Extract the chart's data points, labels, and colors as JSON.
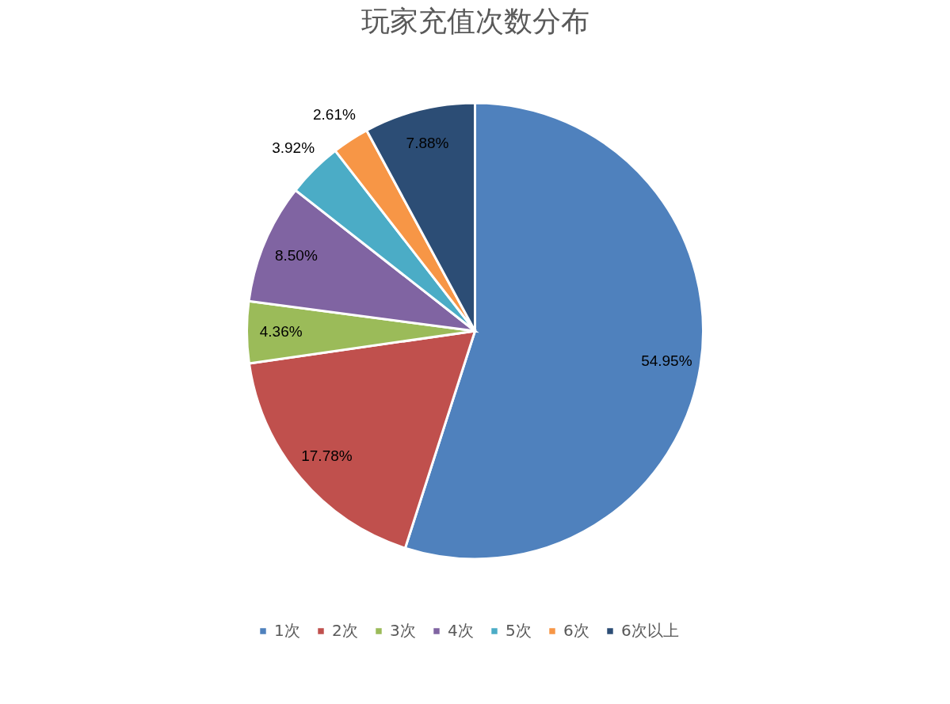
{
  "chart_data": {
    "type": "pie",
    "title": "玩家充值次数分布",
    "categories": [
      "1次",
      "2次",
      "3次",
      "4次",
      "5次",
      "6次",
      "6次以上"
    ],
    "values": [
      54.95,
      17.78,
      4.36,
      8.5,
      3.92,
      2.61,
      7.88
    ],
    "value_labels": [
      "54.95%",
      "17.78%",
      "4.36%",
      "8.50%",
      "3.92%",
      "2.61%",
      "7.88%"
    ],
    "colors": [
      "#4f81bd",
      "#c0504d",
      "#9bbb59",
      "#8064a2",
      "#4bacc6",
      "#f79646",
      "#2c4d75"
    ],
    "legend": "bottom"
  }
}
